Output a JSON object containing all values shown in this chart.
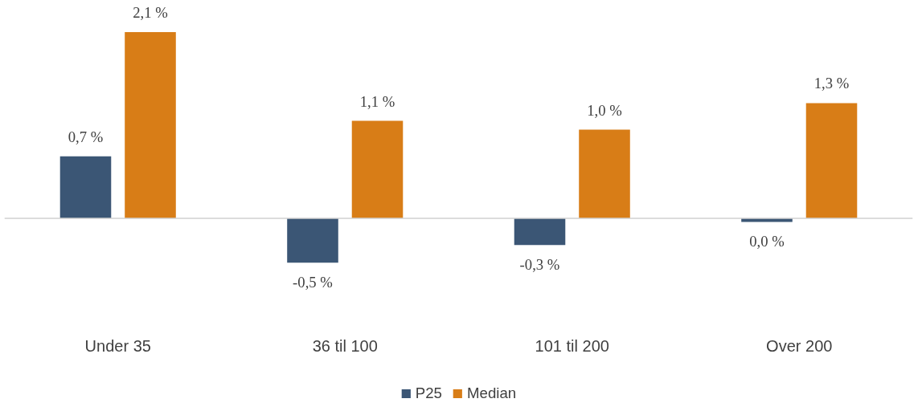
{
  "chart_data": {
    "type": "bar",
    "categories": [
      "Under 35",
      "36 til 100",
      "101 til 200",
      "Over 200"
    ],
    "series": [
      {
        "name": "P25",
        "color": "#3b5675",
        "values": [
          0.7,
          -0.5,
          -0.3,
          -0.04
        ],
        "value_labels": [
          "0,7 %",
          "-0,5 %",
          "-0,3 %",
          "0,0 %"
        ]
      },
      {
        "name": "Median",
        "color": "#d87d17",
        "values": [
          2.1,
          1.1,
          1.0,
          1.3
        ],
        "value_labels": [
          "2,1 %",
          "1,1 %",
          "1,0 %",
          "1,3 %"
        ]
      }
    ],
    "legend": "bottom"
  }
}
